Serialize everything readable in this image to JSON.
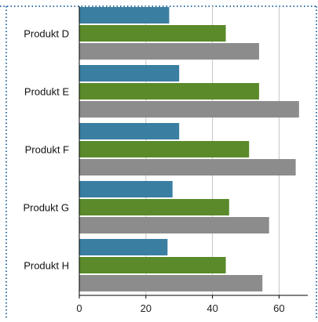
{
  "chart_data": {
    "type": "bar",
    "orientation": "horizontal",
    "categories": [
      "Produkt D",
      "Produkt E",
      "Produkt F",
      "Produkt G",
      "Produkt H"
    ],
    "series": [
      {
        "color": "#3a7ea1",
        "values": [
          27,
          30,
          30,
          28,
          26.5
        ]
      },
      {
        "color": "#5a8a2a",
        "values": [
          44,
          54,
          51,
          45,
          44
        ]
      },
      {
        "color": "#8c8c8c",
        "values": [
          54,
          66,
          65,
          57,
          55
        ]
      }
    ],
    "xlim": [
      0,
      66
    ],
    "xticks": [
      0,
      20,
      40,
      60
    ],
    "grid": true,
    "legend": "none"
  }
}
